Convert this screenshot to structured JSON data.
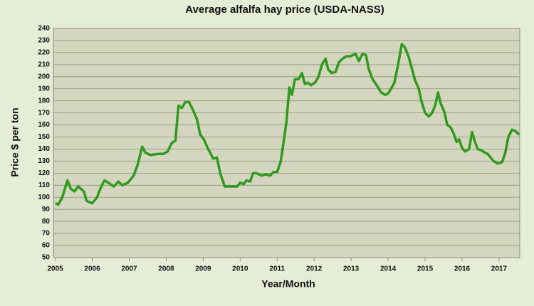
{
  "chart_data": {
    "type": "line",
    "title": "Average alfalfa hay price (USDA-NASS)",
    "x_label": "Year/Month",
    "y_label": "Price $ per ton",
    "x": [
      2005.0,
      2005.08,
      2005.19,
      2005.33,
      2005.42,
      2005.52,
      2005.62,
      2005.77,
      2005.85,
      2006.0,
      2006.13,
      2006.23,
      2006.33,
      2006.44,
      2006.58,
      2006.71,
      2006.81,
      2006.96,
      2007.12,
      2007.23,
      2007.35,
      2007.44,
      2007.58,
      2007.77,
      2007.92,
      2008.04,
      2008.15,
      2008.25,
      2008.33,
      2008.42,
      2008.52,
      2008.62,
      2008.73,
      2008.83,
      2008.92,
      2009.02,
      2009.12,
      2009.19,
      2009.27,
      2009.37,
      2009.46,
      2009.58,
      2009.85,
      2009.92,
      2010.0,
      2010.1,
      2010.17,
      2010.27,
      2010.35,
      2010.44,
      2010.58,
      2010.69,
      2010.81,
      2010.9,
      2011.0,
      2011.1,
      2011.17,
      2011.25,
      2011.33,
      2011.4,
      2011.48,
      2011.58,
      2011.67,
      2011.75,
      2011.83,
      2011.92,
      2012.02,
      2012.12,
      2012.21,
      2012.31,
      2012.38,
      2012.48,
      2012.58,
      2012.67,
      2012.77,
      2012.88,
      2012.98,
      2013.12,
      2013.21,
      2013.31,
      2013.4,
      2013.48,
      2013.58,
      2013.69,
      2013.81,
      2013.92,
      2014.0,
      2014.08,
      2014.17,
      2014.27,
      2014.37,
      2014.46,
      2014.56,
      2014.65,
      2014.73,
      2014.83,
      2014.9,
      2015.0,
      2015.1,
      2015.19,
      2015.27,
      2015.35,
      2015.42,
      2015.52,
      2015.6,
      2015.69,
      2015.77,
      2015.85,
      2015.92,
      2016.0,
      2016.08,
      2016.19,
      2016.27,
      2016.35,
      2016.42,
      2016.52,
      2016.62,
      2016.69,
      2016.77,
      2016.85,
      2016.96,
      2017.08,
      2017.17,
      2017.25,
      2017.35,
      2017.44,
      2017.54
    ],
    "values": [
      95,
      94,
      100,
      114,
      107,
      105,
      109,
      105,
      97,
      95,
      100,
      108,
      114,
      112,
      109,
      113,
      110,
      112,
      118,
      127,
      142,
      137,
      135,
      136,
      136,
      138,
      145,
      147,
      176,
      174,
      179,
      179,
      172,
      165,
      152,
      148,
      141,
      137,
      132,
      133,
      120,
      109,
      109,
      109,
      112,
      111,
      114,
      113,
      120,
      120,
      118,
      119,
      118,
      121,
      121,
      130,
      145,
      162,
      191,
      185,
      198,
      198,
      203,
      194,
      195,
      193,
      195,
      200,
      210,
      215,
      206,
      203,
      204,
      212,
      215,
      217,
      217,
      219,
      213,
      219,
      218,
      206,
      198,
      193,
      187,
      185,
      186,
      190,
      195,
      210,
      227,
      224,
      216,
      206,
      197,
      190,
      180,
      170,
      167,
      170,
      176,
      187,
      178,
      171,
      160,
      158,
      153,
      146,
      148,
      141,
      138,
      140,
      154,
      146,
      140,
      139,
      137,
      136,
      133,
      130,
      128,
      129,
      137,
      150,
      156,
      155,
      152
    ],
    "color": "#2f9a1c",
    "xlim": [
      2004.95,
      2017.56
    ],
    "xticks": [
      2005,
      2006,
      2007,
      2008,
      2009,
      2010,
      2011,
      2012,
      2013,
      2014,
      2015,
      2016,
      2017
    ],
    "ylim": [
      50,
      240
    ],
    "yticks": [
      50,
      60,
      70,
      80,
      90,
      100,
      110,
      120,
      130,
      140,
      150,
      160,
      170,
      180,
      190,
      200,
      210,
      220,
      230,
      240
    ],
    "grid": true
  }
}
